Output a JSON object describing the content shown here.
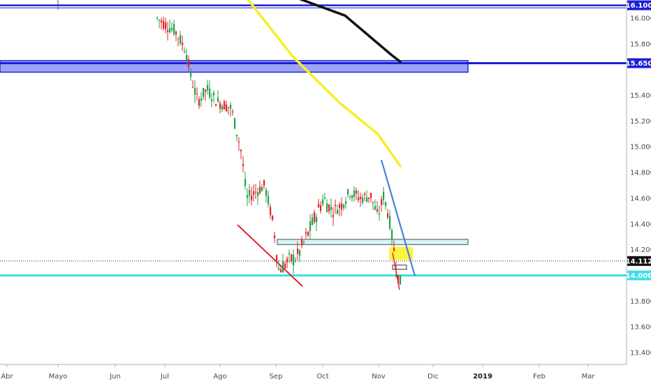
{
  "chart_data": {
    "type": "candlestick",
    "ylim": [
      13.3,
      16.15
    ],
    "y_ticks": [
      "16.000",
      "15.800",
      "15.400",
      "15.200",
      "15.000",
      "14.800",
      "14.600",
      "14.400",
      "14.200",
      "13.800",
      "13.600",
      "13.400"
    ],
    "x_ticks": [
      {
        "label": "Abr",
        "bold": false
      },
      {
        "label": "Mayo",
        "bold": false
      },
      {
        "label": "Jun",
        "bold": false
      },
      {
        "label": "Jul",
        "bold": false
      },
      {
        "label": "Ago",
        "bold": false
      },
      {
        "label": "Sep",
        "bold": false
      },
      {
        "label": "Oct",
        "bold": false
      },
      {
        "label": "Nov",
        "bold": false
      },
      {
        "label": "Dic",
        "bold": false
      },
      {
        "label": "2019",
        "bold": true
      },
      {
        "label": "Feb",
        "bold": false
      },
      {
        "label": "Mar",
        "bold": false
      }
    ],
    "price_badges": [
      {
        "label": "16.100",
        "value": 16.1,
        "bg": "#1a1fd6",
        "fg": "#ffffff"
      },
      {
        "label": "15.650",
        "value": 15.65,
        "bg": "#1a1fd6",
        "fg": "#ffffff"
      },
      {
        "label": "14.112",
        "value": 14.112,
        "bg": "#111111",
        "fg": "#ffffff"
      },
      {
        "label": "14.000",
        "value": 14.0,
        "bg": "#3de0e8",
        "fg": "#ffffff"
      }
    ],
    "levels": {
      "blue_line_top": 16.1,
      "blue_line_top2": 16.08,
      "blue_zone": [
        15.58,
        15.67
      ],
      "cyan_line": 14.0,
      "current_price": 14.112,
      "light_zone": [
        14.24,
        14.28
      ]
    },
    "candles_sample": [
      {
        "date": "Jul",
        "open": 16.05,
        "high": 16.15,
        "low": 15.9,
        "close": 15.95
      },
      {
        "date": "Jul",
        "open": 15.95,
        "high": 16.05,
        "low": 15.85,
        "close": 15.88
      },
      {
        "date": "Jul",
        "open": 15.85,
        "high": 15.95,
        "low": 15.62,
        "close": 15.65
      },
      {
        "date": "Ago",
        "open": 15.6,
        "high": 15.65,
        "low": 15.2,
        "close": 15.3
      },
      {
        "date": "Ago",
        "open": 15.4,
        "high": 15.55,
        "low": 15.25,
        "close": 15.45
      },
      {
        "date": "Ago",
        "open": 15.35,
        "high": 15.45,
        "low": 15.0,
        "close": 15.05
      },
      {
        "date": "Sep",
        "open": 14.9,
        "high": 14.95,
        "low": 14.35,
        "close": 14.45
      },
      {
        "date": "Sep",
        "open": 14.5,
        "high": 14.9,
        "low": 14.45,
        "close": 14.75
      },
      {
        "date": "Sep",
        "open": 14.6,
        "high": 14.65,
        "low": 14.0,
        "close": 14.05
      },
      {
        "date": "Sep",
        "open": 14.05,
        "high": 14.3,
        "low": 13.92,
        "close": 14.2
      },
      {
        "date": "Oct",
        "open": 14.3,
        "high": 14.9,
        "low": 14.25,
        "close": 14.7
      },
      {
        "date": "Oct",
        "open": 14.6,
        "high": 14.8,
        "low": 14.3,
        "close": 14.4
      },
      {
        "date": "Oct",
        "open": 14.4,
        "high": 14.8,
        "low": 14.35,
        "close": 14.7
      },
      {
        "date": "Nov",
        "open": 14.8,
        "high": 14.85,
        "low": 14.2,
        "close": 14.3
      },
      {
        "date": "Nov",
        "open": 14.4,
        "high": 14.5,
        "low": 14.05,
        "close": 14.15
      },
      {
        "date": "Nov",
        "open": 14.1,
        "high": 14.15,
        "low": 13.88,
        "close": 13.95
      }
    ],
    "ma_yellow": [
      [
        0.38,
        16.15
      ],
      [
        0.45,
        15.7
      ],
      [
        0.52,
        15.35
      ],
      [
        0.58,
        15.1
      ],
      [
        0.615,
        14.85
      ]
    ],
    "ma_black": [
      [
        0.46,
        16.15
      ],
      [
        0.53,
        16.02
      ],
      [
        0.6,
        15.72
      ],
      [
        0.615,
        15.66
      ]
    ],
    "grid": false,
    "legend": "none"
  }
}
